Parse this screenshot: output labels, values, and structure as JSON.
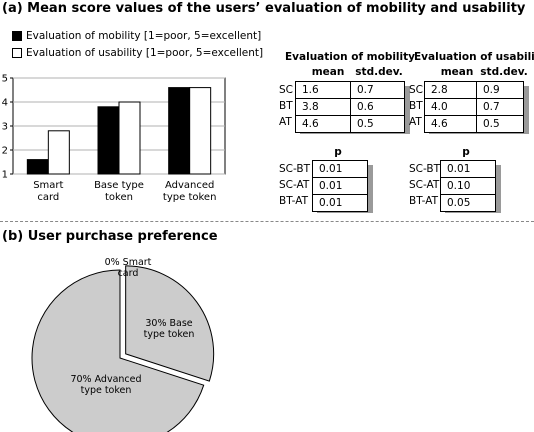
{
  "section_a": {
    "title": "(a) Mean score values of the users’ evaluation of mobility and usability"
  },
  "section_b": {
    "title": "(b) User purchase preference"
  },
  "chart_data": [
    {
      "type": "bar",
      "categories": [
        [
          "Smart",
          "card"
        ],
        [
          "Base type",
          "token"
        ],
        [
          "Advanced",
          "type token"
        ]
      ],
      "series": [
        {
          "name": "Evaluation of mobility [1=poor, 5=excellent]",
          "values": [
            1.6,
            3.8,
            4.6
          ],
          "color": "#000000"
        },
        {
          "name": "Evaluation of usability [1=poor, 5=excellent]",
          "values": [
            2.8,
            4.0,
            4.6
          ],
          "color": "#ffffff"
        }
      ],
      "ylim": [
        1,
        5
      ],
      "yticks": [
        1,
        2,
        3,
        4,
        5
      ],
      "legend": "top-left"
    },
    {
      "type": "pie",
      "slices": [
        {
          "label": [
            "0% Smart",
            "card"
          ],
          "value": 0
        },
        {
          "label": [
            "30% Base",
            "type token"
          ],
          "value": 30
        },
        {
          "label": [
            "70% Advanced",
            "type token"
          ],
          "value": 70
        }
      ],
      "fill": "#cccccc",
      "exploded": "30% Base type token"
    }
  ],
  "tables": {
    "mobility": {
      "title": "Evaluation of mobility",
      "headers": [
        "mean",
        "std.dev."
      ],
      "rows": [
        {
          "label": "SC",
          "mean": "1.6",
          "sd": "0.7"
        },
        {
          "label": "BT",
          "mean": "3.8",
          "sd": "0.6"
        },
        {
          "label": "AT",
          "mean": "4.6",
          "sd": "0.5"
        }
      ],
      "p_header": "p",
      "p_rows": [
        {
          "label": "SC-BT",
          "p": "0.01"
        },
        {
          "label": "SC-AT",
          "p": "0.01"
        },
        {
          "label": "BT-AT",
          "p": "0.01"
        }
      ]
    },
    "usability": {
      "title": "Evaluation of usability",
      "headers": [
        "mean",
        "std.dev."
      ],
      "rows": [
        {
          "label": "SC",
          "mean": "2.8",
          "sd": "0.9"
        },
        {
          "label": "BT",
          "mean": "4.0",
          "sd": "0.7"
        },
        {
          "label": "AT",
          "mean": "4.6",
          "sd": "0.5"
        }
      ],
      "p_header": "p",
      "p_rows": [
        {
          "label": "SC-BT",
          "p": "0.01"
        },
        {
          "label": "SC-AT",
          "p": "0.10"
        },
        {
          "label": "BT-AT",
          "p": "0.05"
        }
      ]
    }
  }
}
